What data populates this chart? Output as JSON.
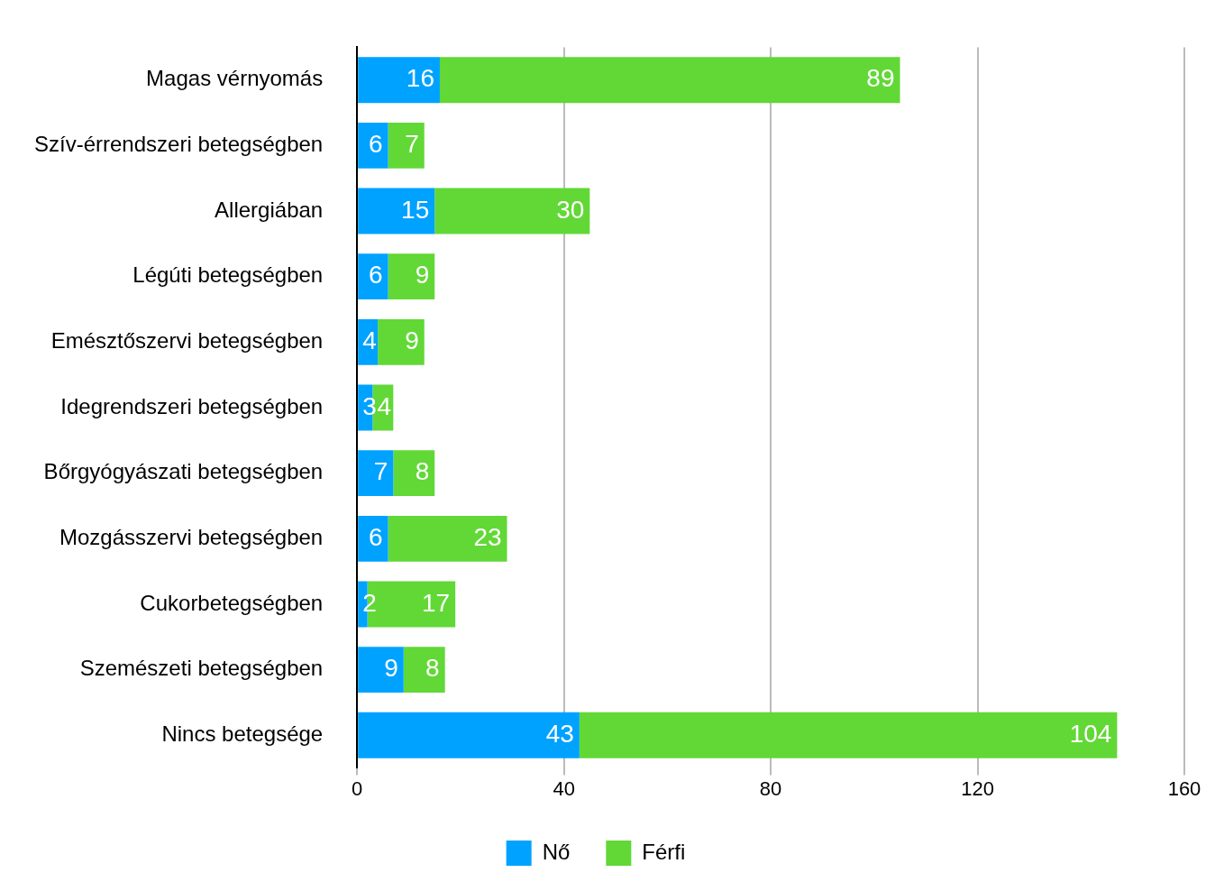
{
  "chart_data": {
    "type": "bar",
    "orientation": "horizontal",
    "stacked": true,
    "categories": [
      "Magas vérnyomás",
      "Szív-érrendszeri betegségben",
      "Allergiában",
      "Légúti betegségben",
      "Emésztőszervi betegségben",
      "Idegrendszeri betegségben",
      "Bőrgyógyászati betegségben",
      "Mozgásszervi betegségben",
      "Cukorbetegségben",
      "Szemészeti betegségben",
      "Nincs betegsége"
    ],
    "series": [
      {
        "name": "Nő",
        "color": "#00a2ff",
        "values": [
          16,
          6,
          15,
          6,
          4,
          3,
          7,
          6,
          2,
          9,
          43
        ]
      },
      {
        "name": "Férfi",
        "color": "#61d836",
        "values": [
          89,
          7,
          30,
          9,
          9,
          4,
          8,
          23,
          17,
          8,
          104
        ]
      }
    ],
    "xlim": [
      0,
      160
    ],
    "xticks": [
      0,
      40,
      80,
      120,
      160
    ],
    "grid": "x",
    "legend": "bottom",
    "data_labels": true
  }
}
